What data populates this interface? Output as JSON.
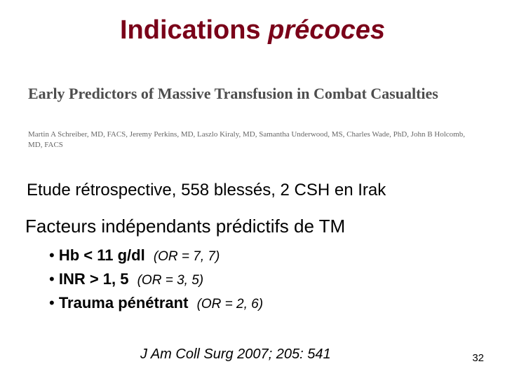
{
  "title": {
    "word1": "Indications",
    "word2": "précoces"
  },
  "paper": {
    "heading": "Early Predictors of Massive Transfusion in Combat Casualties",
    "authors": "Martin A Schreiber, MD, FACS, Jeremy Perkins, MD, Laszlo Kiraly, MD, Samantha Underwood, MS, Charles Wade, PhD, John B Holcomb, MD, FACS"
  },
  "study_line": "Etude rétrospective, 558 blessés, 2 CSH en Irak",
  "factors_heading": "Facteurs indépendants prédictifs de TM",
  "factors": [
    {
      "bullet": "•",
      "label": "Hb < 11 g/dl",
      "or": "(OR = 7, 7)"
    },
    {
      "bullet": "•",
      "label": "INR > 1, 5",
      "or": "(OR = 3, 5)"
    },
    {
      "bullet": "•",
      "label": "Trauma pénétrant",
      "or": "(OR = 2, 6)"
    }
  ],
  "citation": "J Am Coll Surg 2007; 205: 541",
  "page_number": "32",
  "colors": {
    "title": "#7a0019",
    "paper_text": "#4d4d4d",
    "authors_text": "#666666",
    "body_text": "#000000",
    "background": "#ffffff"
  },
  "fontsizes": {
    "title": 38,
    "paper_title": 22,
    "authors": 11,
    "study_line": 24,
    "factors_heading": 26,
    "factors_item": 22,
    "or_text": 19,
    "citation": 20,
    "page_num": 15
  }
}
